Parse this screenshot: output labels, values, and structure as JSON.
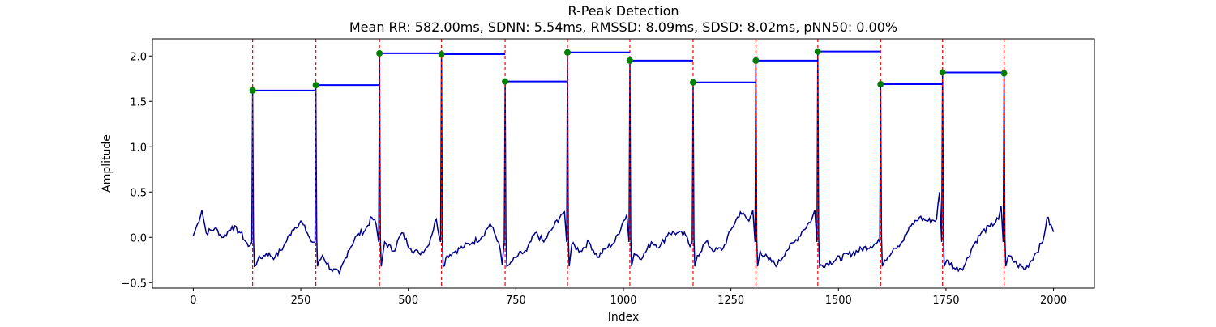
{
  "chart_data": {
    "type": "line",
    "title": "R-Peak Detection",
    "subtitle": "Mean RR: 582.00ms, SDNN: 5.54ms, RMSSD: 8.09ms, SDSD: 8.02ms, pNN50: 0.00%",
    "xlabel": "Index",
    "ylabel": "Amplitude",
    "xlim": [
      -95,
      2095
    ],
    "ylim": [
      -0.56,
      2.19
    ],
    "xticks": [
      0,
      250,
      500,
      750,
      1000,
      1250,
      1500,
      1750,
      2000
    ],
    "yticks": [
      -0.5,
      0.0,
      0.5,
      1.0,
      1.5,
      2.0
    ],
    "ytick_labels": [
      "−0.5",
      "0.0",
      "0.5",
      "1.0",
      "1.5",
      "2.0"
    ],
    "grid": false,
    "legend": "none",
    "colors": {
      "signal": "#00008b",
      "peak_lines": "#ff0000",
      "peak_markers": "#008000",
      "rr_segments": "#0000ff"
    },
    "r_peaks": {
      "x": [
        138,
        285,
        433,
        577,
        725,
        870,
        1015,
        1162,
        1308,
        1452,
        1598,
        1742,
        1885
      ],
      "y": [
        1.62,
        1.68,
        2.03,
        2.02,
        1.72,
        2.04,
        1.95,
        1.71,
        1.95,
        2.05,
        1.69,
        1.82,
        1.81
      ]
    },
    "signal_baseline": {
      "x": [
        0,
        10,
        20,
        30,
        50,
        70,
        90,
        110,
        128,
        150,
        170,
        190,
        210,
        230,
        250,
        265,
        275,
        300,
        320,
        340,
        360,
        380,
        400,
        415,
        425,
        445,
        465,
        485,
        505,
        525,
        545,
        565,
        590,
        610,
        630,
        650,
        670,
        690,
        710,
        718,
        735,
        755,
        775,
        795,
        815,
        835,
        855,
        863,
        880,
        900,
        920,
        940,
        960,
        980,
        1000,
        1008,
        1025,
        1045,
        1065,
        1085,
        1105,
        1125,
        1145,
        1155,
        1172,
        1192,
        1212,
        1232,
        1252,
        1272,
        1292,
        1301,
        1318,
        1338,
        1358,
        1378,
        1398,
        1418,
        1438,
        1445,
        1608,
        1628,
        1648,
        1668,
        1688,
        1708,
        1728,
        1735,
        1752,
        1772,
        1792,
        1812,
        1832,
        1852,
        1872,
        1878,
        1895,
        1915,
        1935,
        1955,
        1975,
        1985,
        2000
      ],
      "y": [
        0.02,
        0.15,
        0.3,
        0.05,
        0.1,
        0.0,
        0.12,
        0.05,
        -0.1,
        -0.25,
        -0.18,
        -0.22,
        -0.1,
        0.08,
        0.18,
        0.05,
        -0.05,
        -0.2,
        -0.35,
        -0.4,
        -0.15,
        0.02,
        0.08,
        0.22,
        0.15,
        -0.05,
        -0.15,
        0.05,
        -0.12,
        -0.18,
        -0.1,
        0.2,
        -0.2,
        -0.15,
        -0.1,
        -0.05,
        0.0,
        0.15,
        -0.05,
        -0.3,
        -0.3,
        -0.2,
        -0.15,
        0.05,
        -0.05,
        0.1,
        0.25,
        0.28,
        -0.08,
        -0.15,
        -0.05,
        -0.22,
        -0.12,
        -0.05,
        0.18,
        0.25,
        -0.18,
        -0.22,
        -0.05,
        -0.1,
        0.05,
        0.05,
        0.02,
        -0.1,
        -0.2,
        -0.05,
        -0.15,
        -0.12,
        0.1,
        0.28,
        0.18,
        0.3,
        -0.15,
        -0.25,
        -0.3,
        -0.15,
        -0.05,
        0.08,
        0.2,
        0.3,
        -0.25,
        -0.12,
        -0.05,
        0.12,
        0.22,
        0.18,
        0.2,
        0.5,
        -0.25,
        -0.35,
        -0.32,
        -0.1,
        0.05,
        0.12,
        0.2,
        0.35,
        -0.2,
        -0.3,
        -0.35,
        -0.2,
        -0.05,
        0.22,
        0.06
      ]
    }
  }
}
